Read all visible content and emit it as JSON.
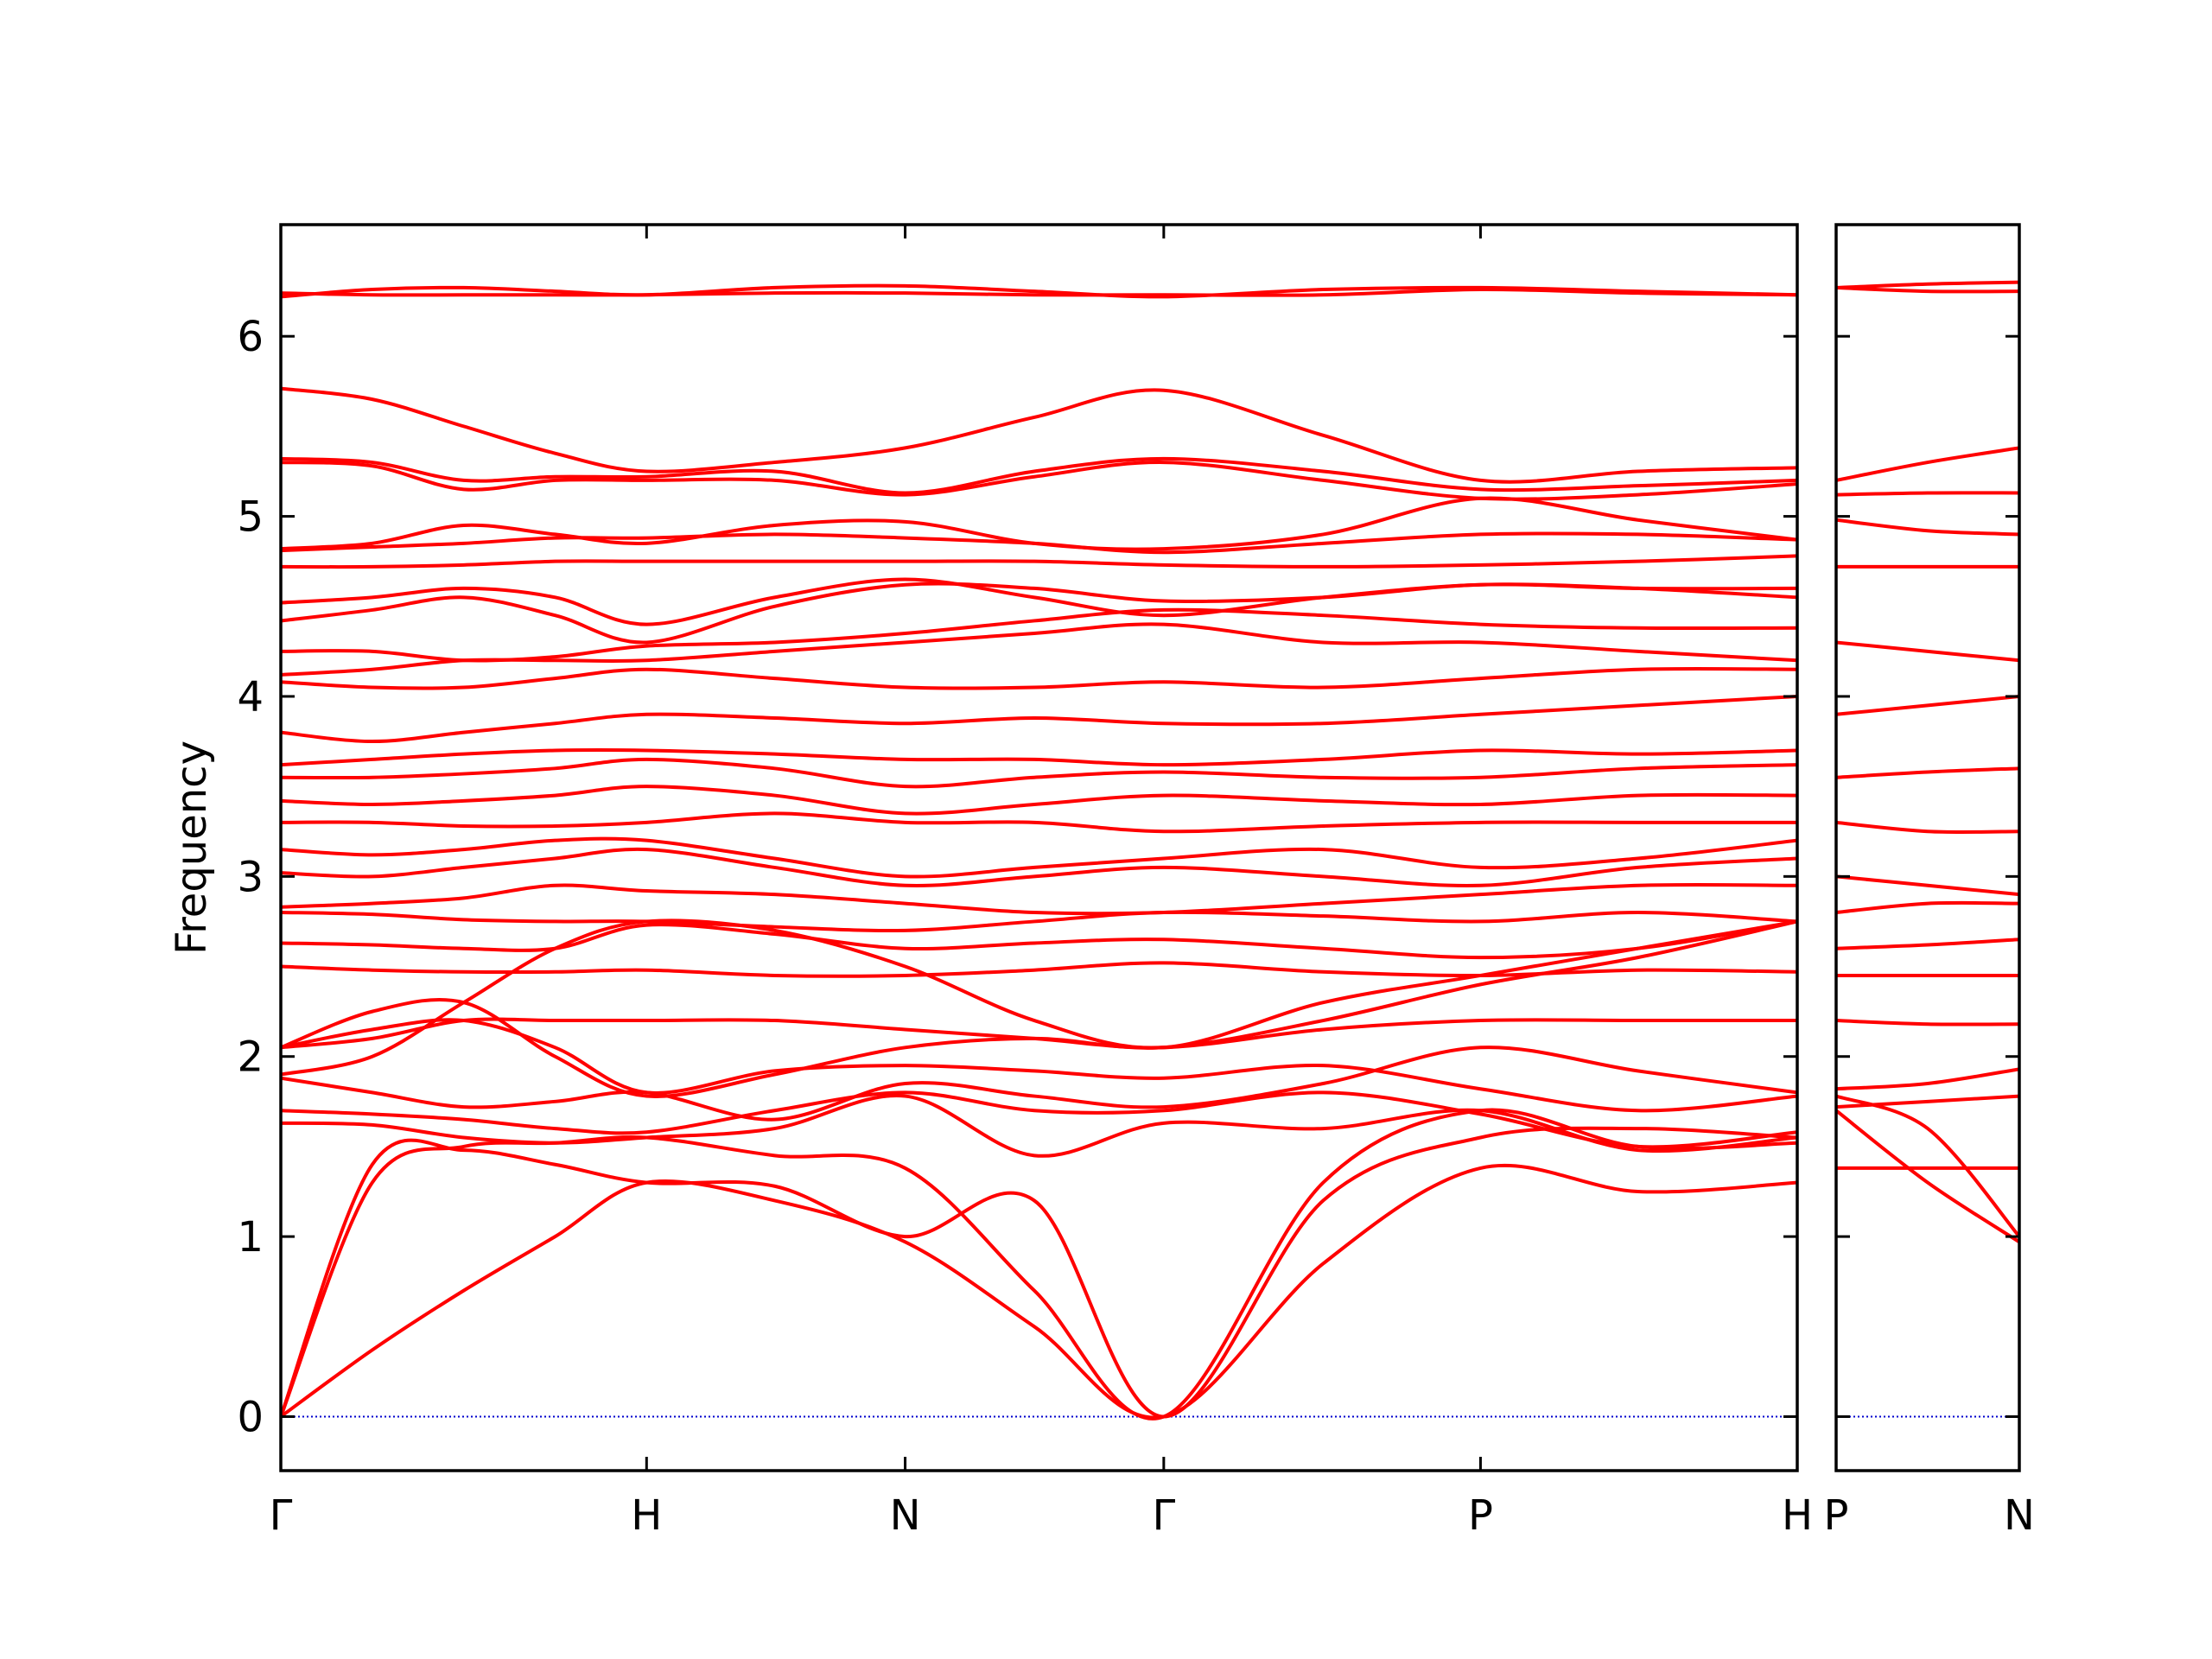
{
  "chart_data": [
    {
      "type": "line",
      "ylabel": "Frequency",
      "color": "#ff0000",
      "hline": 0,
      "hline_color": "#0000cd",
      "xlim": [
        0,
        4.146
      ],
      "ylim": [
        -0.3,
        6.62
      ],
      "xticks": [
        {
          "value": 0,
          "label": "Γ"
        },
        {
          "value": 1,
          "label": "H"
        },
        {
          "value": 1.707,
          "label": "N"
        },
        {
          "value": 2.414,
          "label": "Γ"
        },
        {
          "value": 3.28,
          "label": "P"
        },
        {
          "value": 4.146,
          "label": "H"
        }
      ],
      "yticks": [
        0,
        1,
        2,
        3,
        4,
        5,
        6
      ],
      "x": [
        0,
        0.25,
        0.5,
        0.75,
        1,
        1.35,
        1.707,
        2.06,
        2.414,
        2.85,
        3.28,
        3.71,
        4.146
      ],
      "series": [
        {
          "values": [
            0,
            0.37,
            0.7,
            1.0,
            1.3,
            1.2,
            0.97,
            0.5,
            0,
            0.85,
            1.38,
            1.25,
            1.3
          ]
        },
        {
          "values": [
            0,
            1.4,
            1.48,
            1.4,
            1.3,
            1.28,
            1.0,
            1.2,
            0,
            1.2,
            1.55,
            1.6,
            1.55
          ]
        },
        {
          "values": [
            0,
            1.3,
            1.5,
            1.52,
            1.55,
            1.45,
            1.38,
            0.7,
            0,
            1.3,
            1.7,
            1.5,
            1.52
          ]
        },
        {
          "values": [
            1.63,
            1.62,
            1.55,
            1.52,
            1.55,
            1.6,
            1.78,
            1.45,
            1.63,
            1.6,
            1.7,
            1.48,
            1.55
          ]
        },
        {
          "values": [
            1.7,
            1.68,
            1.65,
            1.6,
            1.58,
            1.7,
            1.8,
            1.7,
            1.7,
            1.8,
            1.68,
            1.5,
            1.58
          ]
        },
        {
          "values": [
            1.88,
            1.8,
            1.72,
            1.75,
            1.8,
            1.65,
            1.85,
            1.78,
            1.72,
            1.85,
            2.05,
            1.92,
            1.8
          ]
        },
        {
          "values": [
            2.05,
            2.15,
            2.2,
            2.05,
            1.8,
            1.92,
            1.95,
            1.92,
            1.88,
            1.95,
            1.82,
            1.7,
            1.78
          ]
        },
        {
          "values": [
            2.05,
            2.1,
            2.2,
            2.2,
            2.2,
            2.2,
            2.15,
            2.1,
            2.05,
            2.15,
            2.2,
            2.2,
            2.2
          ]
        },
        {
          "values": [
            2.5,
            2.48,
            2.47,
            2.47,
            2.48,
            2.45,
            2.45,
            2.48,
            2.52,
            2.47,
            2.45,
            2.48,
            2.47
          ]
        },
        {
          "values": [
            2.63,
            2.62,
            2.6,
            2.6,
            2.73,
            2.68,
            2.6,
            2.63,
            2.65,
            2.6,
            2.55,
            2.6,
            2.75
          ]
        },
        {
          "values": [
            2.8,
            2.79,
            2.76,
            2.75,
            2.75,
            2.72,
            2.7,
            2.75,
            2.8,
            2.78,
            2.75,
            2.8,
            2.75
          ]
        },
        {
          "values": [
            2.83,
            2.85,
            2.88,
            2.95,
            2.92,
            2.9,
            2.85,
            2.8,
            2.8,
            2.85,
            2.9,
            2.95,
            2.95
          ]
        },
        {
          "values": [
            3.02,
            3.0,
            3.05,
            3.1,
            3.15,
            3.05,
            2.95,
            3.0,
            3.05,
            3.0,
            2.95,
            3.05,
            3.1
          ]
        },
        {
          "values": [
            3.15,
            3.12,
            3.15,
            3.2,
            3.2,
            3.1,
            3.0,
            3.05,
            3.1,
            3.15,
            3.05,
            3.1,
            3.2
          ]
        },
        {
          "values": [
            3.3,
            3.3,
            3.28,
            3.28,
            3.3,
            3.35,
            3.3,
            3.3,
            3.25,
            3.28,
            3.3,
            3.3,
            3.3
          ]
        },
        {
          "values": [
            3.42,
            3.4,
            3.42,
            3.45,
            3.5,
            3.45,
            3.35,
            3.4,
            3.45,
            3.42,
            3.4,
            3.45,
            3.45
          ]
        },
        {
          "values": [
            3.55,
            3.55,
            3.57,
            3.6,
            3.65,
            3.6,
            3.5,
            3.55,
            3.58,
            3.55,
            3.55,
            3.6,
            3.62
          ]
        },
        {
          "values": [
            3.62,
            3.65,
            3.68,
            3.7,
            3.7,
            3.68,
            3.65,
            3.65,
            3.62,
            3.65,
            3.7,
            3.68,
            3.7
          ]
        },
        {
          "values": [
            3.8,
            3.75,
            3.8,
            3.85,
            3.9,
            3.88,
            3.85,
            3.88,
            3.85,
            3.85,
            3.9,
            3.95,
            4.0
          ]
        },
        {
          "values": [
            4.08,
            4.05,
            4.05,
            4.1,
            4.15,
            4.1,
            4.05,
            4.05,
            4.08,
            4.05,
            4.1,
            4.15,
            4.15
          ]
        },
        {
          "values": [
            4.12,
            4.15,
            4.2,
            4.2,
            4.2,
            4.25,
            4.3,
            4.35,
            4.4,
            4.3,
            4.3,
            4.25,
            4.2
          ]
        },
        {
          "values": [
            4.25,
            4.25,
            4.2,
            4.22,
            4.28,
            4.3,
            4.35,
            4.42,
            4.48,
            4.45,
            4.4,
            4.38,
            4.38
          ]
        },
        {
          "values": [
            4.42,
            4.48,
            4.55,
            4.45,
            4.3,
            4.5,
            4.62,
            4.6,
            4.53,
            4.55,
            4.62,
            4.6,
            4.55
          ]
        },
        {
          "values": [
            4.52,
            4.55,
            4.6,
            4.55,
            4.4,
            4.55,
            4.65,
            4.55,
            4.45,
            4.55,
            4.62,
            4.6,
            4.6
          ]
        },
        {
          "values": [
            4.72,
            4.72,
            4.73,
            4.75,
            4.75,
            4.75,
            4.75,
            4.75,
            4.73,
            4.72,
            4.73,
            4.75,
            4.78
          ]
        },
        {
          "values": [
            4.81,
            4.83,
            4.85,
            4.88,
            4.88,
            4.9,
            4.88,
            4.85,
            4.8,
            4.85,
            4.9,
            4.9,
            4.87
          ]
        },
        {
          "values": [
            4.82,
            4.85,
            4.95,
            4.9,
            4.85,
            4.95,
            4.97,
            4.85,
            4.82,
            4.9,
            5.1,
            4.98,
            4.87
          ]
        },
        {
          "values": [
            5.3,
            5.28,
            5.15,
            5.2,
            5.2,
            5.2,
            5.12,
            5.22,
            5.3,
            5.2,
            5.1,
            5.12,
            5.18
          ]
        },
        {
          "values": [
            5.32,
            5.3,
            5.2,
            5.22,
            5.22,
            5.25,
            5.13,
            5.25,
            5.32,
            5.25,
            5.15,
            5.17,
            5.2
          ]
        },
        {
          "values": [
            5.71,
            5.65,
            5.5,
            5.35,
            5.25,
            5.3,
            5.38,
            5.55,
            5.7,
            5.45,
            5.2,
            5.25,
            5.27
          ]
        },
        {
          "values": [
            6.22,
            6.26,
            6.27,
            6.25,
            6.23,
            6.27,
            6.28,
            6.25,
            6.22,
            6.26,
            6.27,
            6.25,
            6.23
          ]
        },
        {
          "values": [
            6.24,
            6.23,
            6.23,
            6.23,
            6.23,
            6.24,
            6.24,
            6.23,
            6.23,
            6.23,
            6.26,
            6.24,
            6.23
          ]
        },
        {
          "values": [
            1.9,
            2.0,
            2.3,
            2.6,
            2.75,
            2.7,
            2.5,
            2.2,
            2.05,
            2.3,
            2.45,
            2.6,
            2.75
          ]
        },
        {
          "values": [
            2.05,
            2.25,
            2.3,
            2.0,
            1.78,
            1.9,
            2.05,
            2.1,
            2.05,
            2.2,
            2.4,
            2.55,
            2.75
          ]
        }
      ]
    },
    {
      "type": "line",
      "color": "#ff0000",
      "hline": 0,
      "hline_color": "#0000cd",
      "xlim": [
        0,
        0.5
      ],
      "ylim": [
        -0.3,
        6.62
      ],
      "xticks": [
        {
          "value": 0,
          "label": "P"
        },
        {
          "value": 0.5,
          "label": "N"
        }
      ],
      "yticks": [
        0,
        1,
        2,
        3,
        4,
        5,
        6
      ],
      "x": [
        0,
        0.25,
        0.5
      ],
      "series": [
        {
          "values": [
            1.38,
            1.38,
            1.38
          ]
        },
        {
          "values": [
            1.7,
            1.3,
            0.97
          ]
        },
        {
          "values": [
            1.78,
            1.6,
            1.0
          ]
        },
        {
          "values": [
            1.72,
            1.75,
            1.78
          ]
        },
        {
          "values": [
            1.82,
            1.85,
            1.93
          ]
        },
        {
          "values": [
            2.2,
            2.18,
            2.18
          ]
        },
        {
          "values": [
            2.45,
            2.45,
            2.45
          ]
        },
        {
          "values": [
            2.6,
            2.62,
            2.65
          ]
        },
        {
          "values": [
            2.8,
            2.85,
            2.85
          ]
        },
        {
          "values": [
            3.0,
            2.95,
            2.9
          ]
        },
        {
          "values": [
            3.3,
            3.25,
            3.25
          ]
        },
        {
          "values": [
            3.55,
            3.58,
            3.6
          ]
        },
        {
          "values": [
            3.9,
            3.95,
            4.0
          ]
        },
        {
          "values": [
            4.3,
            4.25,
            4.2
          ]
        },
        {
          "values": [
            4.72,
            4.72,
            4.72
          ]
        },
        {
          "values": [
            4.98,
            4.92,
            4.9
          ]
        },
        {
          "values": [
            5.12,
            5.13,
            5.13
          ]
        },
        {
          "values": [
            5.2,
            5.3,
            5.38
          ]
        },
        {
          "values": [
            6.27,
            6.25,
            6.25
          ]
        },
        {
          "values": [
            6.27,
            6.29,
            6.3
          ]
        }
      ]
    }
  ]
}
